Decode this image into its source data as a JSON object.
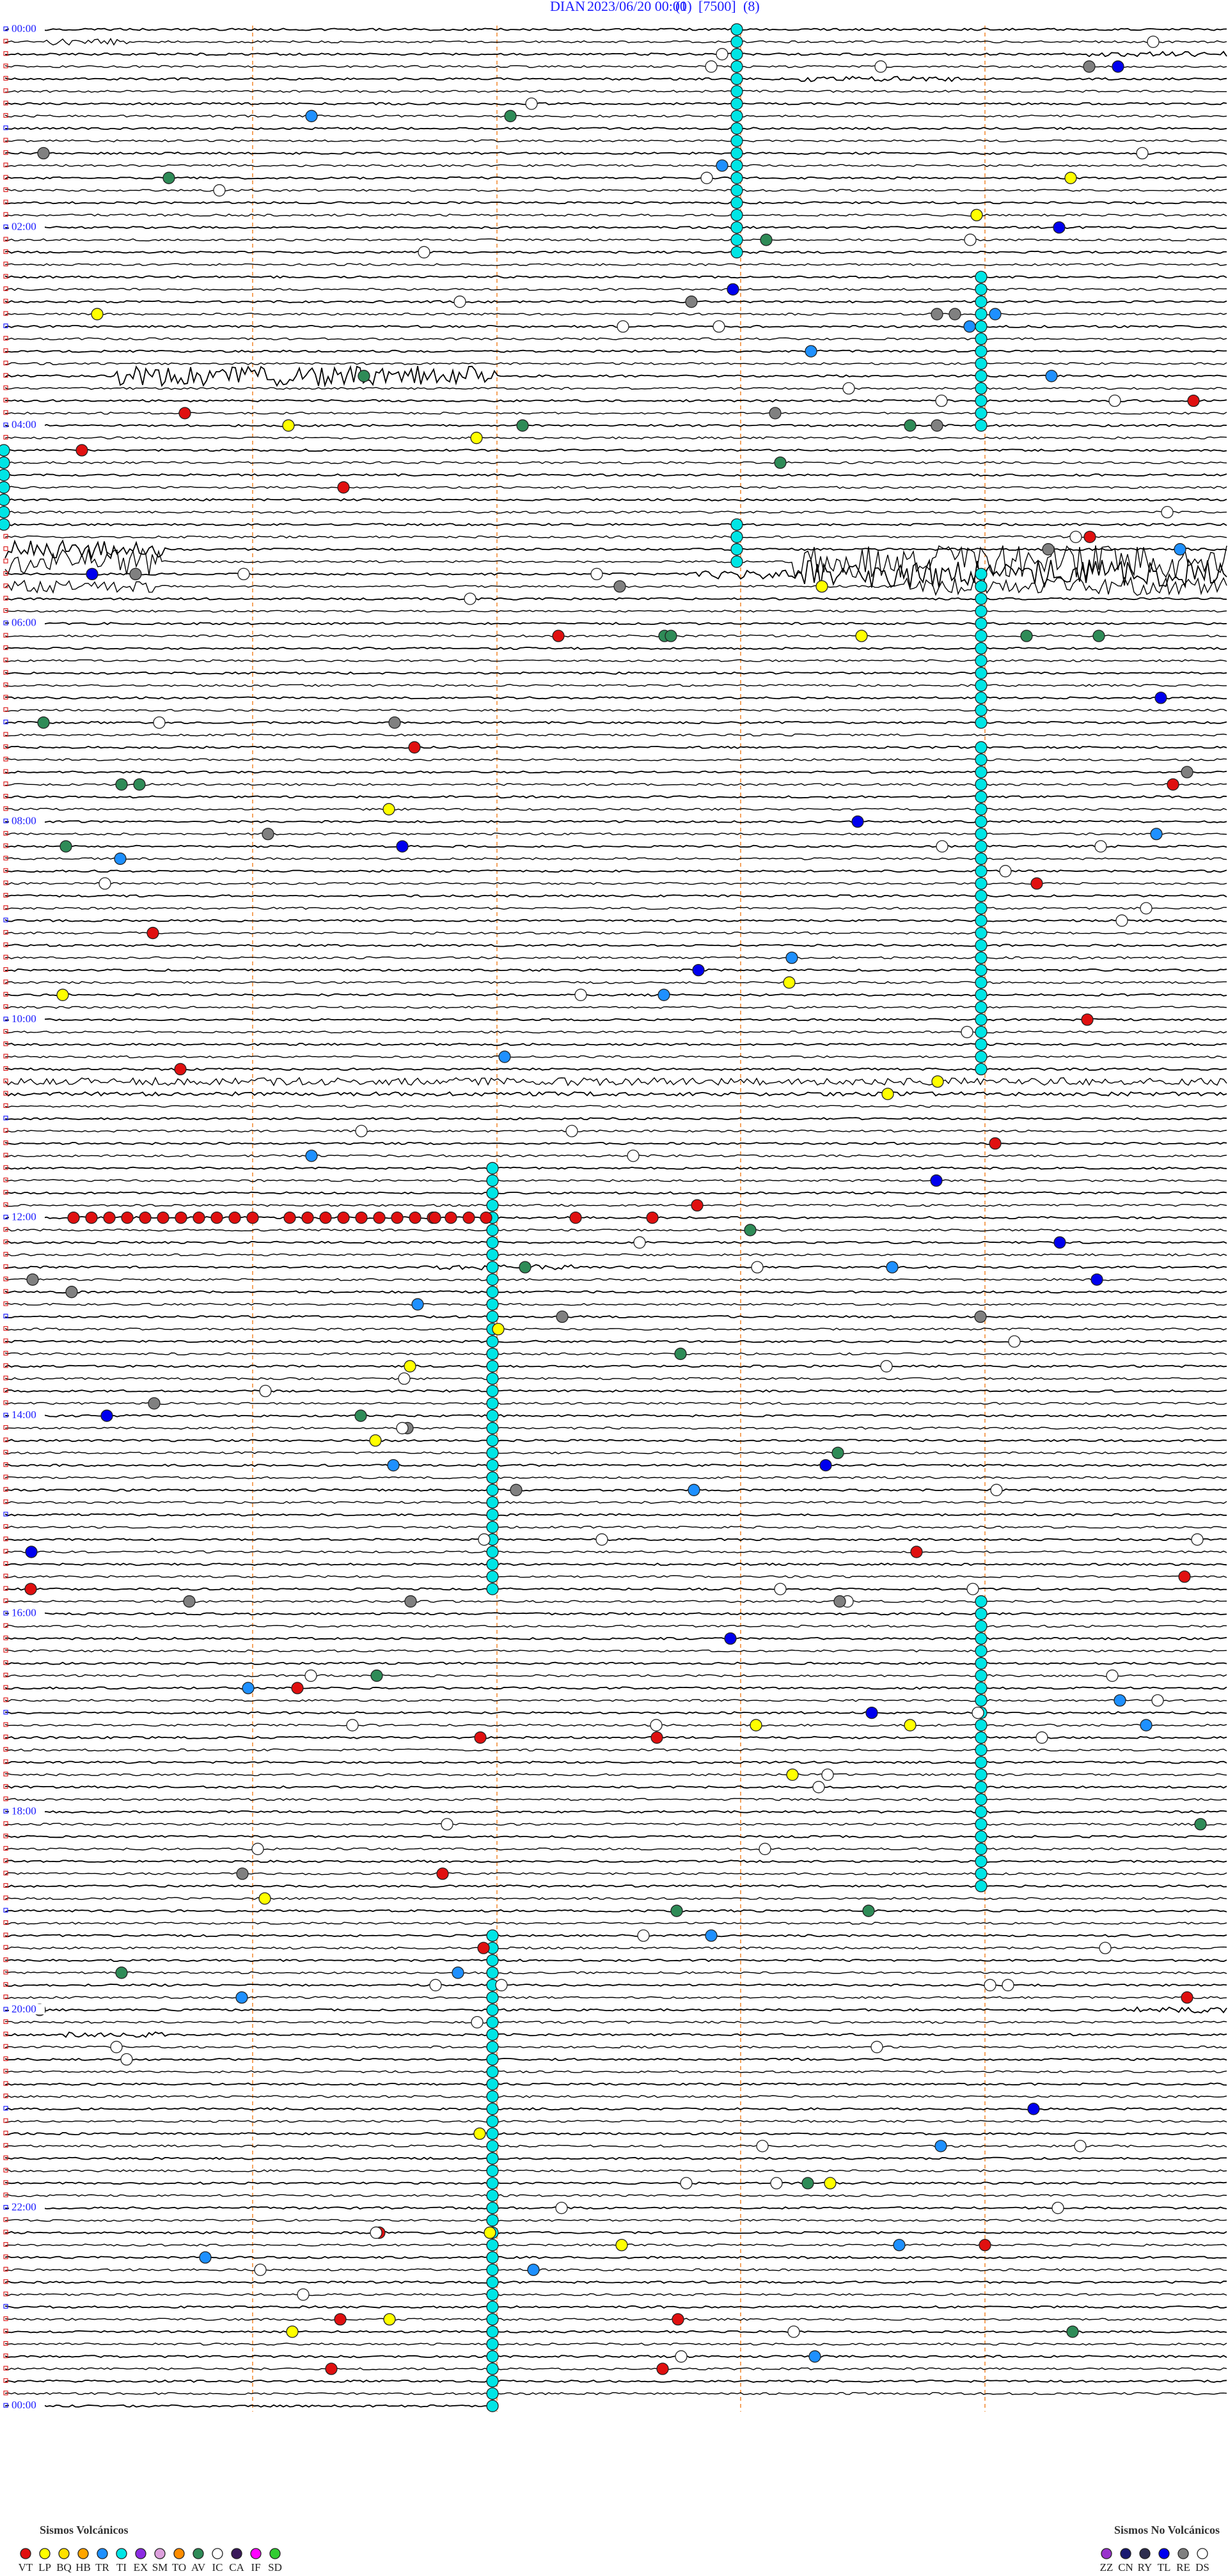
{
  "header": {
    "station": "DIAN",
    "date": "2023/06/20 00:00",
    "run": "(1)",
    "scale": "[7500]",
    "filter": "(8)"
  },
  "hour_labels": [
    "00:00",
    "02:00",
    "04:00",
    "06:00",
    "08:00",
    "10:00",
    "12:00",
    "14:00",
    "16:00",
    "18:00",
    "20:00",
    "22:00",
    "00:00"
  ],
  "legend": {
    "volcanic": {
      "title": "Sismos Volcánicos",
      "items": [
        {
          "code": "VT",
          "color": "#e01010"
        },
        {
          "code": "LP",
          "color": "#ffff00"
        },
        {
          "code": "BQ",
          "color": "#ffe000"
        },
        {
          "code": "HB",
          "color": "#ffa500"
        },
        {
          "code": "TR",
          "color": "#1e90ff"
        },
        {
          "code": "TI",
          "color": "#00e5e5"
        },
        {
          "code": "EX",
          "color": "#8b2be2"
        },
        {
          "code": "SM",
          "color": "#dda0dd"
        },
        {
          "code": "TO",
          "color": "#ff8c00"
        },
        {
          "code": "AV",
          "color": "#2e8b57"
        },
        {
          "code": "IC",
          "color": "#ffffff"
        },
        {
          "code": "CA",
          "color": "#3a1a5a"
        },
        {
          "code": "IF",
          "color": "#ff00ff"
        },
        {
          "code": "SD",
          "color": "#32cd32"
        }
      ]
    },
    "non_volcanic": {
      "title": "Sismos No Volcánicos",
      "items": [
        {
          "code": "ZZ",
          "color": "#9932cc"
        },
        {
          "code": "CN",
          "color": "#191970"
        },
        {
          "code": "RY",
          "color": "#2f2f4f"
        },
        {
          "code": "TL",
          "color": "#0000ee"
        },
        {
          "code": "RE",
          "color": "#808080"
        },
        {
          "code": "DS",
          "color": "#ffffff"
        }
      ]
    }
  }
}
